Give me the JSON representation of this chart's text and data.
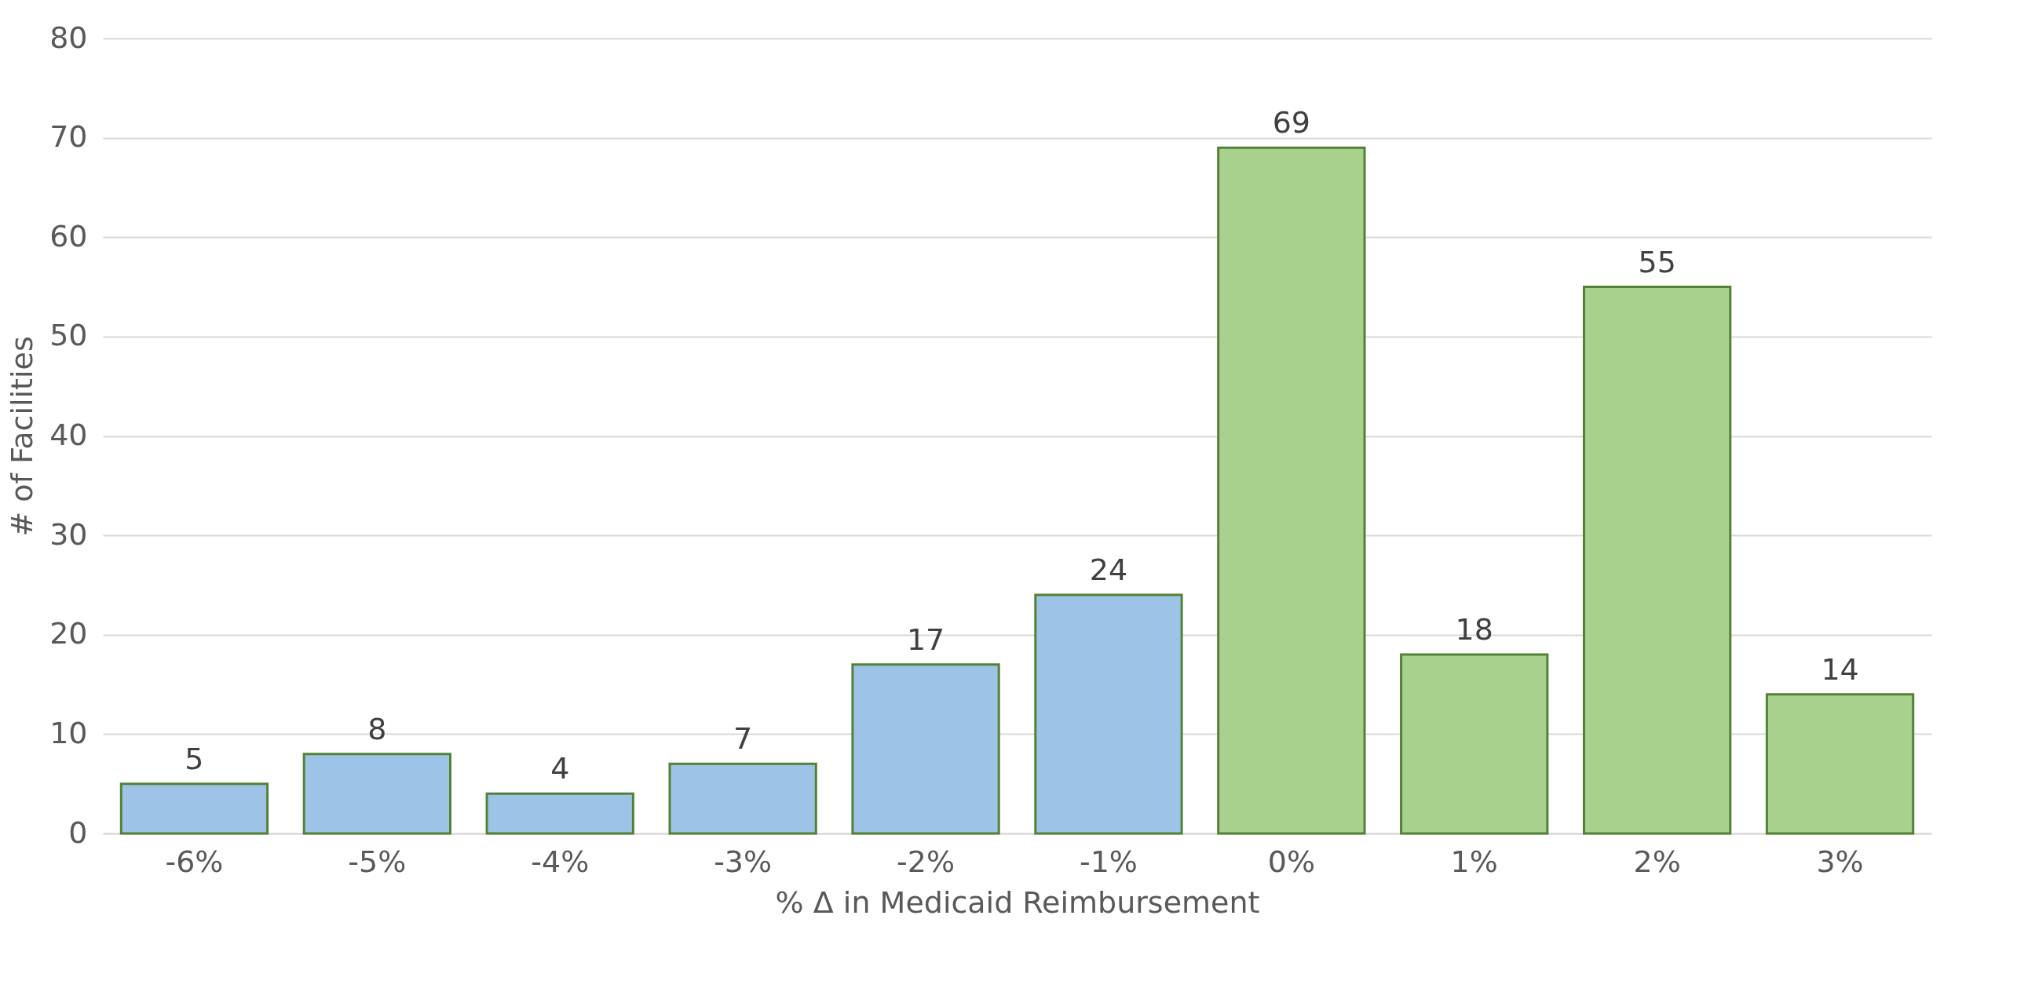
{
  "chart_data": {
    "type": "bar",
    "xlabel": "% Δ in Medicaid Reimbursement",
    "ylabel": "# of Facilities",
    "categories": [
      "-6%",
      "-5%",
      "-4%",
      "-3%",
      "-2%",
      "-1%",
      "0%",
      "1%",
      "2%",
      "3%"
    ],
    "values": [
      5,
      8,
      4,
      7,
      17,
      24,
      69,
      18,
      55,
      14
    ],
    "colors": [
      "#9dc3e6",
      "#9dc3e6",
      "#9dc3e6",
      "#9dc3e6",
      "#9dc3e6",
      "#9dc3e6",
      "#a9d18e",
      "#a9d18e",
      "#a9d18e",
      "#a9d18e"
    ],
    "ylim": [
      0,
      80
    ],
    "yticks": [
      0,
      10,
      20,
      30,
      40,
      50,
      60,
      70,
      80
    ],
    "data_labels": true,
    "grid": "y"
  }
}
